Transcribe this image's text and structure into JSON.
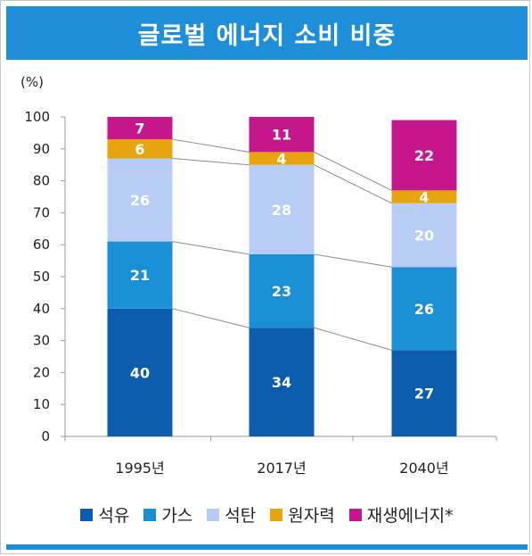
{
  "header": {
    "title": "글로벌 에너지 소비 비중"
  },
  "chart_data": {
    "type": "bar",
    "stacked": true,
    "ylabel": "(%)",
    "ylim": [
      0,
      100
    ],
    "yticks": [
      0,
      10,
      20,
      30,
      40,
      50,
      60,
      70,
      80,
      90,
      100
    ],
    "categories": [
      "1995년",
      "2017년",
      "2040년"
    ],
    "series": [
      {
        "name": "석유",
        "values": [
          40,
          34,
          27
        ],
        "color": "#0b5cad",
        "label_color": "#ffffff"
      },
      {
        "name": "가스",
        "values": [
          21,
          23,
          26
        ],
        "color": "#1b8fd6",
        "label_color": "#ffffff"
      },
      {
        "name": "석탄",
        "values": [
          26,
          28,
          20
        ],
        "color": "#b8cdf5",
        "label_color": "#ffffff"
      },
      {
        "name": "원자력",
        "values": [
          6,
          4,
          4
        ],
        "color": "#e8a40f",
        "label_color": "#ffffff"
      },
      {
        "name": "재생에너지*",
        "values": [
          7,
          11,
          22
        ],
        "color": "#c5168c",
        "label_color": "#ffffff"
      }
    ],
    "connector_lines": true,
    "grid": false,
    "legend_position": "bottom"
  }
}
